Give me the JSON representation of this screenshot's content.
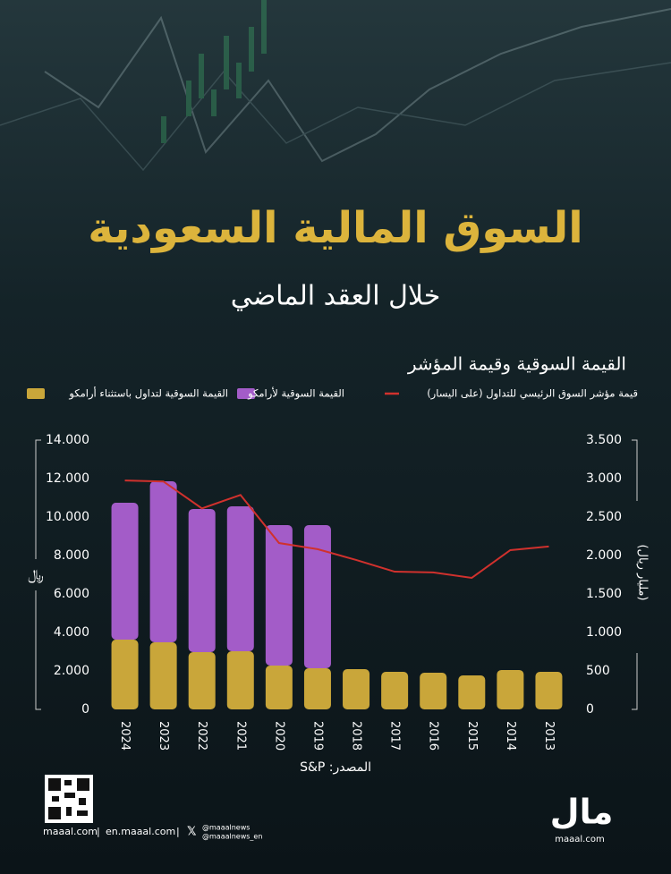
{
  "header": {
    "title": "السوق المالية السعودية",
    "subtitle": "خلال العقد الماضي"
  },
  "chart_data": {
    "type": "bar",
    "title": "القيمة السوقية وقيمة المؤشر",
    "categories": [
      "2024",
      "2023",
      "2022",
      "2021",
      "2020",
      "2019",
      "2018",
      "2017",
      "2016",
      "2015",
      "2014",
      "2013"
    ],
    "series": [
      {
        "name": "قيمة مؤشر السوق الرئيسي للتداول (على اليسار)",
        "type": "line",
        "color": "#d0312d",
        "values": [
          11900,
          11850,
          10450,
          11150,
          8650,
          8330,
          7770,
          7160,
          7120,
          6840,
          8280,
          8470
        ]
      },
      {
        "name": "القيمة السوقية لأرامكو",
        "color": "#a35cc8",
        "axis": "y2",
        "values": [
          1779,
          2093,
          1861,
          1884,
          1825,
          1860,
          null,
          null,
          null,
          null,
          null,
          null
        ]
      },
      {
        "name": "القيمة السوقية لتداول باستثناء أرامكو",
        "color": "#c9a63a",
        "axis": "y2",
        "values": [
          907,
          872,
          744,
          756,
          570,
          535,
          523,
          488,
          477,
          442,
          512,
          488
        ]
      }
    ],
    "y_label": "﷼",
    "y2_label": "(مليار ريال)",
    "ylim": [
      0,
      14000
    ],
    "yticks": [
      0,
      {
        "value": 2000,
        "label": "2.000"
      },
      {
        "value": 4000,
        "label": "4.000"
      },
      {
        "value": 6000,
        "label": "6.000"
      },
      {
        "value": 8000,
        "label": "8.000"
      },
      {
        "value": 10000,
        "label": "10.000"
      },
      {
        "value": 12000,
        "label": "12.000"
      },
      {
        "value": 14000,
        "label": "14.000"
      }
    ],
    "y2lim": [
      0,
      3500
    ],
    "y2ticks": [
      0,
      500,
      {
        "value": 1000,
        "label": "1.000"
      },
      {
        "value": 1500,
        "label": "1.500"
      },
      {
        "value": 2000,
        "label": "2.000"
      },
      {
        "value": 2500,
        "label": "2.500"
      },
      {
        "value": 3000,
        "label": "3.000"
      },
      {
        "value": 3500,
        "label": "3.500"
      }
    ],
    "grid": false,
    "source": "المصدر: S&P"
  },
  "footer": {
    "site": "maaal.com",
    "site_en": "en.maaal.com",
    "handle": "@maaalnews",
    "handle_en": "@maaalnews_en",
    "logo": "مال",
    "logo_site": "maaal.com"
  }
}
